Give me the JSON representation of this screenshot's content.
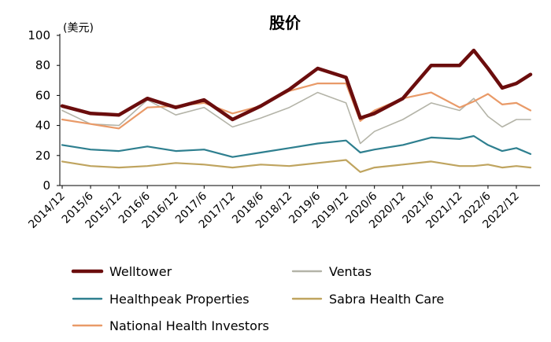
{
  "chart_data": {
    "type": "line",
    "title": "股价",
    "unit_label": "(美元)",
    "xlabel": "",
    "ylabel": "",
    "ylim": [
      0,
      100
    ],
    "yticks": [
      0,
      20,
      40,
      60,
      80,
      100
    ],
    "x_tick_labels": [
      "2014/12",
      "2015/6",
      "2015/12",
      "2016/6",
      "2016/12",
      "2017/6",
      "2017/12",
      "2018/6",
      "2018/12",
      "2019/6",
      "2019/12",
      "2020/6",
      "2020/12",
      "2021/6",
      "2021/12",
      "2022/6",
      "2022/12"
    ],
    "grid": false,
    "legend_position": "bottom",
    "x": [
      "2014/12",
      "2015/6",
      "2015/12",
      "2016/6",
      "2016/12",
      "2017/6",
      "2017/12",
      "2018/6",
      "2018/12",
      "2019/6",
      "2019/12",
      "2020/3",
      "2020/6",
      "2020/12",
      "2021/6",
      "2021/12",
      "2022/3",
      "2022/6",
      "2022/9",
      "2022/12",
      "2023/3"
    ],
    "series": [
      {
        "name": "Welltower",
        "color": "#6b0d0d",
        "width": 4.5,
        "values": [
          53,
          48,
          47,
          58,
          52,
          57,
          44,
          53,
          64,
          78,
          72,
          45,
          48,
          58,
          80,
          80,
          90,
          78,
          65,
          68,
          74
        ]
      },
      {
        "name": "Ventas",
        "color": "#b4b4a8",
        "width": 1.6,
        "values": [
          50,
          41,
          40,
          57,
          47,
          52,
          39,
          45,
          52,
          62,
          55,
          28,
          36,
          44,
          55,
          50,
          58,
          46,
          39,
          44,
          44
        ]
      },
      {
        "name": "Healthpeak Properties",
        "color": "#2e7f8f",
        "width": 2.2,
        "values": [
          27,
          24,
          23,
          26,
          23,
          24,
          19,
          22,
          25,
          28,
          30,
          22,
          24,
          27,
          32,
          31,
          33,
          27,
          23,
          25,
          21
        ]
      },
      {
        "name": "Sabra Health Care",
        "color": "#bfa45f",
        "width": 2.2,
        "values": [
          16,
          13,
          12,
          13,
          15,
          14,
          12,
          14,
          13,
          15,
          17,
          9,
          12,
          14,
          16,
          13,
          13,
          14,
          12,
          13,
          12
        ]
      },
      {
        "name": "National Health Investors",
        "color": "#e99a68",
        "width": 2.2,
        "values": [
          44,
          41,
          38,
          52,
          53,
          55,
          48,
          53,
          63,
          68,
          68,
          43,
          50,
          58,
          62,
          52,
          56,
          61,
          54,
          55,
          50
        ]
      }
    ]
  }
}
